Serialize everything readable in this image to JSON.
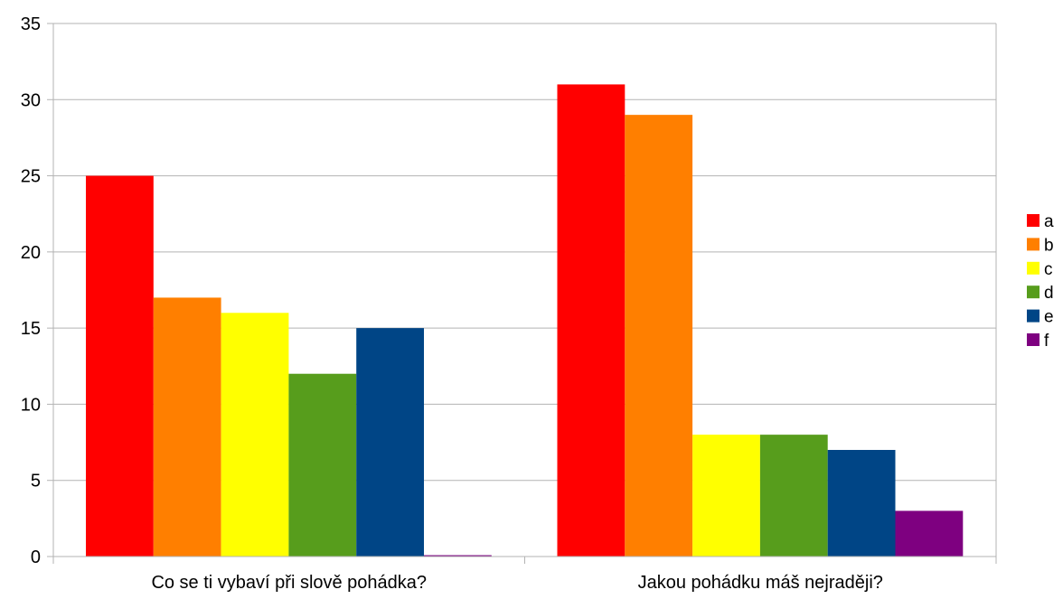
{
  "chart_data": {
    "type": "bar",
    "title": "",
    "xlabel": "",
    "ylabel": "",
    "ylim": [
      0,
      35
    ],
    "ytick_step": 5,
    "yticks": [
      "0",
      "5",
      "10",
      "15",
      "20",
      "25",
      "30",
      "35"
    ],
    "grid": true,
    "legend_position": "right",
    "categories": [
      "Co se ti vybaví při slově pohádka?",
      "Jakou pohádku máš nejraději?"
    ],
    "series": [
      {
        "name": "a",
        "color": "#ff0000",
        "values": [
          25,
          31
        ]
      },
      {
        "name": "b",
        "color": "#ff7f00",
        "values": [
          17,
          29
        ]
      },
      {
        "name": "c",
        "color": "#ffff00",
        "values": [
          16,
          8
        ]
      },
      {
        "name": "d",
        "color": "#579d1c",
        "values": [
          12,
          8
        ]
      },
      {
        "name": "e",
        "color": "#004586",
        "values": [
          15,
          7
        ]
      },
      {
        "name": "f",
        "color": "#7e0080",
        "values": [
          0,
          3
        ]
      }
    ]
  }
}
